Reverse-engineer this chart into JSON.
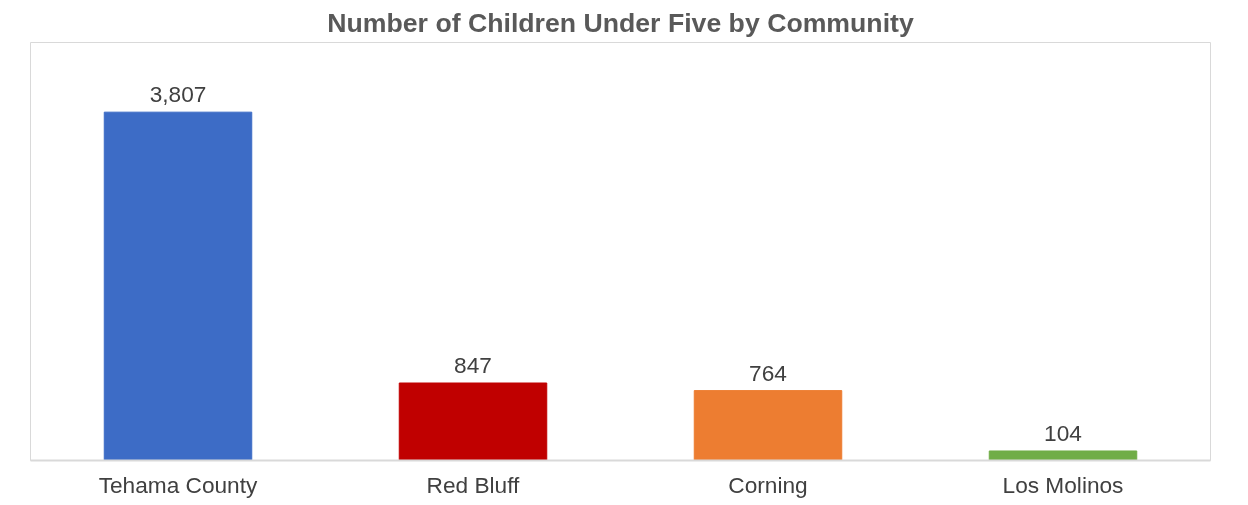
{
  "chart_data": {
    "type": "bar",
    "title": "Number of Children Under Five by Community",
    "categories": [
      "Tehama County",
      "Red Bluff",
      "Corning",
      "Los Molinos"
    ],
    "values": [
      3807,
      847,
      764,
      104
    ],
    "colors": [
      "#3d6cc6",
      "#c00000",
      "#ed7d31",
      "#70ad47"
    ],
    "value_labels": [
      "3,807",
      "847",
      "764",
      "104"
    ]
  }
}
